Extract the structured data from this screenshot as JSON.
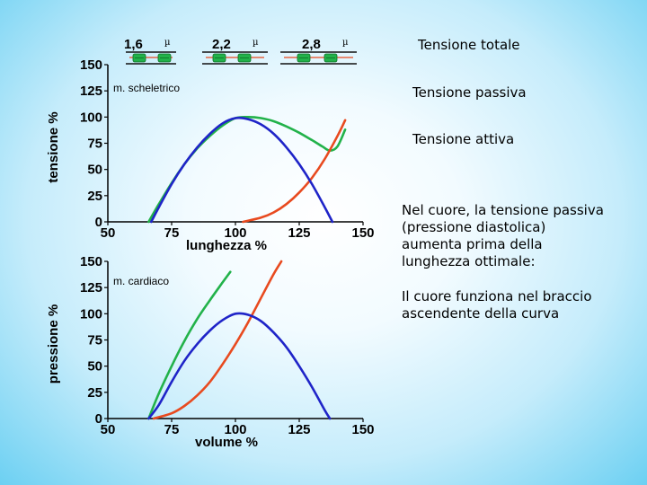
{
  "legend": {
    "total": "Tensione totale",
    "passive": "Tensione passiva",
    "active": "Tensione attiva"
  },
  "notes": [
    "Nel cuore, la tensione passiva (pressione diastolica) aumenta prima della lunghezza ottimale:",
    "Il cuore funziona nel braccio ascendente della curva"
  ],
  "sarcomeres": [
    {
      "length": "1,6",
      "unit": "µ"
    },
    {
      "length": "2,2",
      "unit": "µ"
    },
    {
      "length": "2,8",
      "unit": "µ"
    }
  ],
  "colors": {
    "total": "#22b24a",
    "passive": "#e84a1f",
    "active": "#1f24c8"
  },
  "chart_data": [
    {
      "type": "line",
      "title": "m. scheletrico",
      "xlabel": "lunghezza %",
      "ylabel": "tensione %",
      "xlim": [
        50,
        150
      ],
      "ylim": [
        0,
        150
      ],
      "xticks": [
        "50",
        "75",
        "100",
        "125",
        "150"
      ],
      "yticks": [
        "0",
        "25",
        "50",
        "75",
        "100",
        "125",
        "150"
      ],
      "series": [
        {
          "key": "total",
          "x": [
            66,
            70,
            75,
            80,
            85,
            90,
            95,
            100,
            105,
            110,
            115,
            120,
            125,
            130,
            134,
            137,
            140,
            143
          ],
          "y": [
            0,
            17,
            37,
            55,
            70,
            82,
            92,
            99,
            100,
            99,
            96,
            91,
            85,
            78,
            72,
            68,
            72,
            88
          ]
        },
        {
          "key": "passive",
          "x": [
            103,
            110,
            115,
            120,
            125,
            130,
            135,
            140,
            143
          ],
          "y": [
            0,
            4,
            9,
            17,
            28,
            42,
            60,
            82,
            97
          ]
        },
        {
          "key": "active",
          "x": [
            67,
            70,
            75,
            80,
            85,
            90,
            95,
            100,
            105,
            110,
            115,
            120,
            125,
            130,
            135,
            138
          ],
          "y": [
            0,
            14,
            36,
            55,
            71,
            84,
            94,
            99,
            98,
            93,
            84,
            71,
            55,
            36,
            14,
            0
          ]
        }
      ]
    },
    {
      "type": "line",
      "title": "m. cardiaco",
      "xlabel": "volume %",
      "ylabel": "pressione %",
      "xlim": [
        50,
        150
      ],
      "ylim": [
        0,
        150
      ],
      "xticks": [
        "50",
        "75",
        "100",
        "125",
        "150"
      ],
      "yticks": [
        "0",
        "25",
        "50",
        "75",
        "100",
        "125",
        "150"
      ],
      "series": [
        {
          "key": "total",
          "x": [
            66,
            70,
            75,
            80,
            85,
            90,
            95,
            98
          ],
          "y": [
            0,
            24,
            50,
            74,
            95,
            113,
            130,
            140
          ]
        },
        {
          "key": "passive",
          "x": [
            68,
            75,
            80,
            85,
            90,
            95,
            100,
            105,
            110,
            115,
            118
          ],
          "y": [
            0,
            5,
            12,
            22,
            35,
            52,
            71,
            92,
            115,
            138,
            150
          ]
        },
        {
          "key": "active",
          "x": [
            66,
            70,
            75,
            80,
            85,
            90,
            95,
            100,
            105,
            110,
            115,
            120,
            125,
            130,
            135,
            137
          ],
          "y": [
            0,
            13,
            35,
            55,
            71,
            84,
            94,
            100,
            99,
            93,
            82,
            68,
            50,
            30,
            8,
            0
          ]
        }
      ]
    }
  ]
}
